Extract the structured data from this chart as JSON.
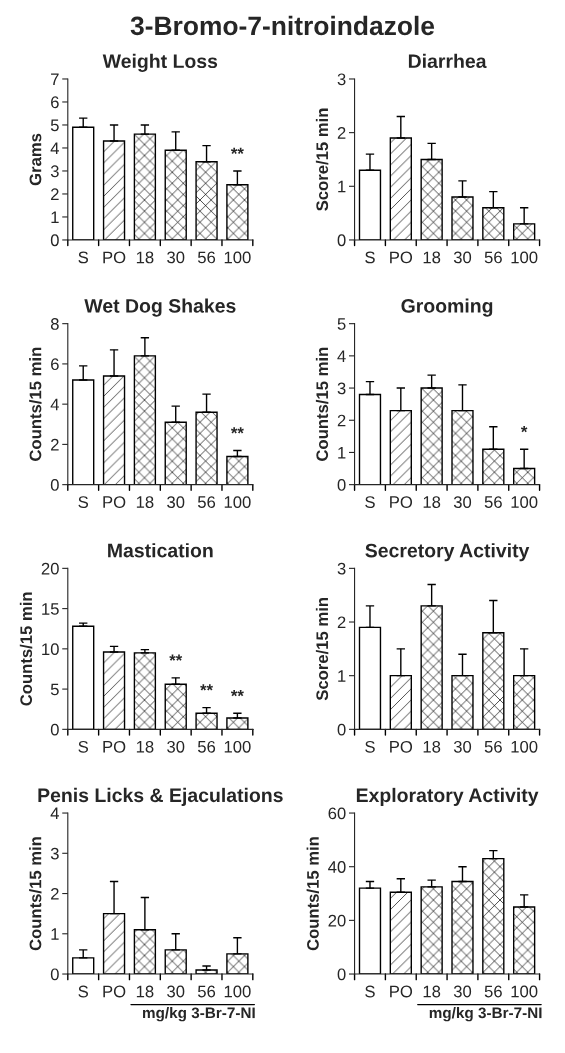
{
  "chart_data": [
    {
      "type": "bar",
      "title": "Weight Loss",
      "ylabel": "Grams",
      "categories": [
        "S",
        "PO",
        "18",
        "30",
        "56",
        "100"
      ],
      "values": [
        4.9,
        4.3,
        4.6,
        3.9,
        3.4,
        2.4
      ],
      "errors": [
        [
          4.9,
          5.3
        ],
        [
          4.3,
          5.0
        ],
        [
          4.6,
          5.0
        ],
        [
          3.9,
          4.7
        ],
        [
          3.4,
          4.1
        ],
        [
          2.4,
          3.0
        ]
      ],
      "colors": [
        "#ffffff",
        "#ffffff",
        "#ffffff",
        "#ffffff",
        "#ffffff",
        "#ffffff"
      ],
      "ylim": [
        0,
        7
      ],
      "yticks": [
        0,
        1,
        2,
        3,
        4,
        5,
        6,
        7
      ],
      "annotations": [
        "3-Bromo-7-nitroindazole",
        {
          "text": "**",
          "x": "100",
          "y": 3.0
        }
      ]
    },
    {
      "type": "bar",
      "title": "Diarrhea",
      "ylabel": "Score/15 min",
      "categories": [
        "S",
        "PO",
        "18",
        "30",
        "56",
        "100"
      ],
      "values": [
        1.3,
        1.9,
        1.5,
        0.8,
        0.6,
        0.3
      ],
      "errors": [
        [
          1.3,
          1.6
        ],
        [
          1.9,
          2.3
        ],
        [
          1.5,
          1.8
        ],
        [
          0.8,
          1.1
        ],
        [
          0.6,
          0.9
        ],
        [
          0.3,
          0.6
        ]
      ],
      "colors": [
        "#ffffff",
        "#ffffff",
        "#ffffff",
        "#ffffff",
        "#ffffff",
        "#ffffff"
      ],
      "ylim": [
        0,
        3
      ],
      "yticks": [
        0,
        1,
        2,
        3
      ]
    },
    {
      "type": "bar",
      "title": "Wet Dog Shakes",
      "ylabel": "Counts/15 min",
      "categories": [
        "S",
        "PO",
        "18",
        "30",
        "56",
        "100"
      ],
      "values": [
        5.2,
        5.4,
        6.4,
        3.1,
        3.6,
        1.4
      ],
      "errors": [
        [
          5.2,
          5.9
        ],
        [
          5.4,
          6.7
        ],
        [
          6.4,
          7.3
        ],
        [
          3.1,
          3.9
        ],
        [
          3.6,
          4.5
        ],
        [
          1.4,
          1.7
        ]
      ],
      "colors": [
        "#ffffff",
        "#ffffff",
        "#ffffff",
        "#ffffff",
        "#ffffff",
        "#ffffff"
      ],
      "ylim": [
        0,
        8
      ],
      "yticks": [
        0,
        2,
        4,
        6,
        8
      ],
      "annotations": [
        {
          "text": "**",
          "x": "100",
          "y": 1.7
        }
      ]
    },
    {
      "type": "bar",
      "title": "Grooming",
      "ylabel": "Counts/15 min",
      "categories": [
        "S",
        "PO",
        "18",
        "30",
        "56",
        "100"
      ],
      "values": [
        2.8,
        2.3,
        3.0,
        2.3,
        1.1,
        0.5
      ],
      "errors": [
        [
          2.8,
          3.2
        ],
        [
          2.3,
          3.0
        ],
        [
          3.0,
          3.4
        ],
        [
          2.3,
          3.1
        ],
        [
          1.1,
          1.8
        ],
        [
          0.5,
          1.1
        ]
      ],
      "colors": [
        "#ffffff",
        "#ffffff",
        "#ffffff",
        "#ffffff",
        "#ffffff",
        "#ffffff"
      ],
      "ylim": [
        0,
        5
      ],
      "yticks": [
        0,
        1,
        2,
        3,
        4,
        5
      ],
      "annotations": [
        {
          "text": "*",
          "x": "100",
          "y": 1.1
        }
      ]
    },
    {
      "type": "bar",
      "title": "Mastication",
      "ylabel": "Counts/15 min",
      "categories": [
        "S",
        "PO",
        "18",
        "30",
        "56",
        "100"
      ],
      "values": [
        12.8,
        9.6,
        9.5,
        5.6,
        2.0,
        1.4
      ],
      "errors": [
        [
          12.8,
          13.2
        ],
        [
          9.6,
          10.3
        ],
        [
          9.5,
          9.9
        ],
        [
          5.6,
          6.4
        ],
        [
          2.0,
          2.7
        ],
        [
          1.4,
          2.0
        ]
      ],
      "colors": [
        "#ffffff",
        "#ffffff",
        "#ffffff",
        "#ffffff",
        "#ffffff",
        "#ffffff"
      ],
      "ylim": [
        0,
        20
      ],
      "yticks": [
        0,
        5,
        10,
        15,
        20
      ],
      "annotations": [
        {
          "text": "**",
          "x": "30",
          "y": 6.4
        },
        {
          "text": "**",
          "x": "56",
          "y": 2.7
        },
        {
          "text": "**",
          "x": "100",
          "y": 2.0
        }
      ]
    },
    {
      "type": "bar",
      "title": "Secretory Activity",
      "ylabel": "Score/15 min",
      "categories": [
        "S",
        "PO",
        "18",
        "30",
        "56",
        "100"
      ],
      "values": [
        1.9,
        1.0,
        2.3,
        1.0,
        1.8,
        1.0
      ],
      "errors": [
        [
          1.9,
          2.3
        ],
        [
          1.0,
          1.5
        ],
        [
          2.3,
          2.7
        ],
        [
          1.0,
          1.4
        ],
        [
          1.8,
          2.4
        ],
        [
          1.0,
          1.5
        ]
      ],
      "colors": [
        "#ffffff",
        "#ffffff",
        "#ffffff",
        "#ffffff",
        "#ffffff",
        "#ffffff"
      ],
      "ylim": [
        0,
        3
      ],
      "yticks": [
        0,
        1,
        2,
        3
      ]
    },
    {
      "type": "bar",
      "title": "Penis Licks & Ejaculations",
      "ylabel": "Counts/15 min",
      "categories": [
        "S",
        "PO",
        "18",
        "30",
        "56",
        "100"
      ],
      "values": [
        0.4,
        1.5,
        1.1,
        0.6,
        0.1,
        0.5
      ],
      "errors": [
        [
          0.4,
          0.6
        ],
        [
          1.5,
          2.3
        ],
        [
          1.1,
          1.9
        ],
        [
          0.6,
          1.0
        ],
        [
          0.1,
          0.2
        ],
        [
          0.5,
          0.9
        ]
      ],
      "colors": [
        "#ffffff",
        "#ffffff",
        "#ffffff",
        "#ffffff",
        "#ffffff",
        "#ffffff"
      ],
      "ylim": [
        0,
        4
      ],
      "yticks": [
        0,
        1,
        2,
        3,
        4
      ],
      "annotations": [
        "mg/kg 3-Br-7-NI"
      ]
    },
    {
      "type": "bar",
      "title": "Exploratory Activity",
      "ylabel": "Counts/15 min",
      "categories": [
        "S",
        "PO",
        "18",
        "30",
        "56",
        "100"
      ],
      "values": [
        32,
        30.5,
        32.5,
        34.5,
        43,
        25
      ],
      "errors": [
        [
          32,
          34.5
        ],
        [
          30.5,
          35.5
        ],
        [
          32.5,
          35
        ],
        [
          34.5,
          40
        ],
        [
          43,
          46
        ],
        [
          25,
          29.5
        ]
      ],
      "colors": [
        "#ffffff",
        "#ffffff",
        "#ffffff",
        "#ffffff",
        "#ffffff",
        "#ffffff"
      ],
      "ylim": [
        0,
        60
      ],
      "yticks": [
        0,
        20,
        40,
        60
      ],
      "annotations": [
        "mg/kg 3-Br-7-NI"
      ]
    }
  ]
}
